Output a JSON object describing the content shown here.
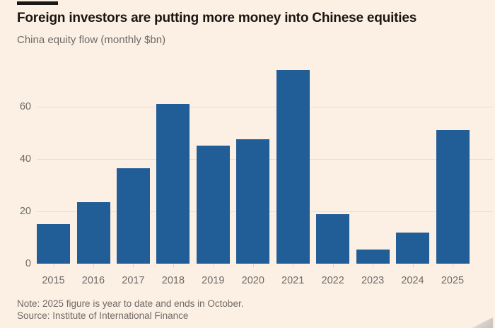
{
  "header": {
    "title": "Foreign investors are putting more money into Chinese equities",
    "subtitle": "China equity flow (monthly $bn)"
  },
  "chart_data": {
    "type": "bar",
    "title": "Foreign investors are putting more money into Chinese equities",
    "subtitle": "China equity flow (monthly $bn)",
    "categories": [
      "2015",
      "2016",
      "2017",
      "2018",
      "2019",
      "2020",
      "2021",
      "2022",
      "2023",
      "2024",
      "2025"
    ],
    "values": [
      15,
      23.5,
      36.5,
      61,
      45,
      47.5,
      74,
      19,
      5.5,
      12,
      51
    ],
    "xlabel": "",
    "ylabel": "",
    "yticks": [
      0,
      20,
      40,
      60
    ],
    "ylim": [
      0,
      75
    ],
    "grid": true,
    "legend": "none",
    "bar_color": "#215d96",
    "grid_color": "#efdecd",
    "axis_text_color": "#6f6a66",
    "background_color": "#fcf0e4"
  },
  "footer": {
    "note": "Note: 2025 figure is year to date and ends in October.",
    "source": "Source: Institute of International Finance"
  }
}
